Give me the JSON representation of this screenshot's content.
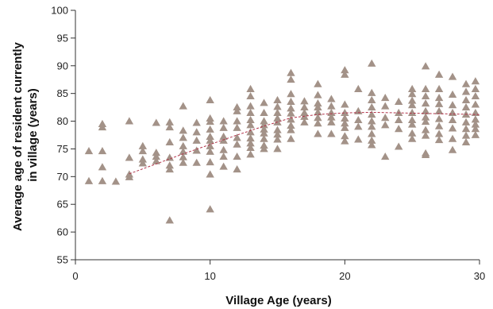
{
  "chart_data": {
    "type": "scatter",
    "xlabel": "Village Age (years)",
    "ylabel_lines": [
      "Average age of resident currently",
      "in village (years)"
    ],
    "xlim": [
      0,
      30
    ],
    "ylim": [
      55,
      100
    ],
    "xticks": [
      0,
      10,
      20,
      30
    ],
    "yticks": [
      55,
      60,
      65,
      70,
      75,
      80,
      85,
      90,
      95,
      100
    ],
    "grid": false,
    "marker_shape": "triangle",
    "marker_color": "#a39288",
    "trend_color": "#b2344a",
    "trend_style": "dashed",
    "trend_line": [
      [
        4,
        70.5
      ],
      [
        6,
        72.3
      ],
      [
        8,
        74.1
      ],
      [
        10,
        75.8
      ],
      [
        12,
        77.5
      ],
      [
        14,
        79.1
      ],
      [
        16,
        80.6
      ],
      [
        18,
        81.2
      ],
      [
        20,
        81.5
      ],
      [
        22,
        81.6
      ],
      [
        24,
        81.5
      ],
      [
        26,
        81.4
      ],
      [
        28,
        81.3
      ],
      [
        30,
        81.2
      ]
    ],
    "points": [
      [
        1,
        74.6
      ],
      [
        1,
        69.2
      ],
      [
        2,
        79.5
      ],
      [
        2,
        78.9
      ],
      [
        2,
        74.6
      ],
      [
        2,
        71.7
      ],
      [
        2,
        69.2
      ],
      [
        3,
        69.1
      ],
      [
        4,
        80.0
      ],
      [
        4,
        73.4
      ],
      [
        4,
        70.4
      ],
      [
        4,
        69.9
      ],
      [
        5,
        75.5
      ],
      [
        5,
        74.6
      ],
      [
        5,
        73.1
      ],
      [
        5,
        72.4
      ],
      [
        6,
        79.7
      ],
      [
        6,
        74.3
      ],
      [
        6,
        73.6
      ],
      [
        6,
        72.8
      ],
      [
        7,
        79.8
      ],
      [
        7,
        78.9
      ],
      [
        7,
        76.2
      ],
      [
        7,
        73.4
      ],
      [
        7,
        72.0
      ],
      [
        7,
        71.3
      ],
      [
        7,
        62.1
      ],
      [
        8,
        82.7
      ],
      [
        8,
        78.3
      ],
      [
        8,
        77.0
      ],
      [
        8,
        75.5
      ],
      [
        8,
        74.5
      ],
      [
        8,
        73.5
      ],
      [
        8,
        72.5
      ],
      [
        9,
        79.7
      ],
      [
        9,
        78.0
      ],
      [
        9,
        76.5
      ],
      [
        9,
        74.7
      ],
      [
        9,
        72.5
      ],
      [
        10,
        83.8
      ],
      [
        10,
        80.5
      ],
      [
        10,
        79.9
      ],
      [
        10,
        78.5
      ],
      [
        10,
        77.2
      ],
      [
        10,
        76.5
      ],
      [
        10,
        75.5
      ],
      [
        10,
        74.5
      ],
      [
        10,
        72.6
      ],
      [
        10,
        70.4
      ],
      [
        10,
        64.1
      ],
      [
        11,
        80.0
      ],
      [
        11,
        78.8
      ],
      [
        11,
        77.2
      ],
      [
        11,
        76.5
      ],
      [
        11,
        74.8
      ],
      [
        11,
        73.6
      ],
      [
        11,
        71.8
      ],
      [
        12,
        82.5
      ],
      [
        12,
        81.8
      ],
      [
        12,
        80.0
      ],
      [
        12,
        78.8
      ],
      [
        12,
        77.0
      ],
      [
        12,
        75.8
      ],
      [
        12,
        73.6
      ],
      [
        12,
        71.3
      ],
      [
        13,
        85.8
      ],
      [
        13,
        84.5
      ],
      [
        13,
        82.7
      ],
      [
        13,
        81.5
      ],
      [
        13,
        80.2
      ],
      [
        13,
        79.3
      ],
      [
        13,
        78.0
      ],
      [
        13,
        76.9
      ],
      [
        13,
        76.0
      ],
      [
        13,
        75.2
      ],
      [
        13,
        74.0
      ],
      [
        14,
        83.3
      ],
      [
        14,
        81.5
      ],
      [
        14,
        80.0
      ],
      [
        14,
        79.3
      ],
      [
        14,
        78.5
      ],
      [
        14,
        77.8
      ],
      [
        14,
        76.8
      ],
      [
        14,
        75.6
      ],
      [
        14,
        75.0
      ],
      [
        15,
        83.8
      ],
      [
        15,
        82.6
      ],
      [
        15,
        81.5
      ],
      [
        15,
        80.5
      ],
      [
        15,
        79.8
      ],
      [
        15,
        78.4
      ],
      [
        15,
        77.6
      ],
      [
        15,
        76.7
      ],
      [
        15,
        75.0
      ],
      [
        16,
        88.7
      ],
      [
        16,
        87.5
      ],
      [
        16,
        84.9
      ],
      [
        16,
        83.5
      ],
      [
        16,
        82.3
      ],
      [
        16,
        81.4
      ],
      [
        16,
        80.3
      ],
      [
        16,
        79.2
      ],
      [
        16,
        78.4
      ],
      [
        16,
        76.8
      ],
      [
        17,
        83.6
      ],
      [
        17,
        82.5
      ],
      [
        17,
        81.5
      ],
      [
        17,
        80.8
      ],
      [
        17,
        79.8
      ],
      [
        18,
        86.7
      ],
      [
        18,
        84.7
      ],
      [
        18,
        83.2
      ],
      [
        18,
        82.5
      ],
      [
        18,
        81.6
      ],
      [
        18,
        80.6
      ],
      [
        18,
        79.6
      ],
      [
        18,
        77.7
      ],
      [
        19,
        84.0
      ],
      [
        19,
        82.7
      ],
      [
        19,
        81.5
      ],
      [
        19,
        80.7
      ],
      [
        19,
        79.8
      ],
      [
        19,
        77.7
      ],
      [
        20,
        89.2
      ],
      [
        20,
        88.4
      ],
      [
        20,
        83.0
      ],
      [
        20,
        81.5
      ],
      [
        20,
        80.5
      ],
      [
        20,
        79.6
      ],
      [
        20,
        78.8
      ],
      [
        20,
        77.3
      ],
      [
        20,
        76.4
      ],
      [
        21,
        85.8
      ],
      [
        21,
        81.8
      ],
      [
        21,
        80.2
      ],
      [
        21,
        79.0
      ],
      [
        21,
        76.7
      ],
      [
        22,
        90.4
      ],
      [
        22,
        85.1
      ],
      [
        22,
        83.8
      ],
      [
        22,
        82.5
      ],
      [
        22,
        81.2
      ],
      [
        22,
        80.0
      ],
      [
        22,
        79.0
      ],
      [
        22,
        77.7
      ],
      [
        22,
        76.5
      ],
      [
        22,
        75.7
      ],
      [
        23,
        84.2
      ],
      [
        23,
        82.7
      ],
      [
        23,
        80.6
      ],
      [
        23,
        79.3
      ],
      [
        23,
        73.6
      ],
      [
        24,
        83.5
      ],
      [
        24,
        81.5
      ],
      [
        24,
        80.2
      ],
      [
        24,
        78.6
      ],
      [
        24,
        75.4
      ],
      [
        25,
        85.8
      ],
      [
        25,
        84.9
      ],
      [
        25,
        83.7
      ],
      [
        25,
        82.9
      ],
      [
        25,
        81.5
      ],
      [
        25,
        80.2
      ],
      [
        25,
        79.4
      ],
      [
        25,
        77.8
      ],
      [
        25,
        76.8
      ],
      [
        26,
        89.9
      ],
      [
        26,
        85.8
      ],
      [
        26,
        84.5
      ],
      [
        26,
        83.2
      ],
      [
        26,
        81.8
      ],
      [
        26,
        80.7
      ],
      [
        26,
        79.9
      ],
      [
        26,
        78.4
      ],
      [
        26,
        77.4
      ],
      [
        26,
        74.2
      ],
      [
        26,
        73.9
      ],
      [
        27,
        88.4
      ],
      [
        27,
        85.8
      ],
      [
        27,
        84.2
      ],
      [
        27,
        83.1
      ],
      [
        27,
        81.8
      ],
      [
        27,
        80.4
      ],
      [
        27,
        79.1
      ],
      [
        27,
        77.7
      ],
      [
        27,
        76.6
      ],
      [
        28,
        88.0
      ],
      [
        28,
        84.8
      ],
      [
        28,
        82.9
      ],
      [
        28,
        81.5
      ],
      [
        28,
        80.2
      ],
      [
        28,
        78.7
      ],
      [
        28,
        76.8
      ],
      [
        28,
        74.8
      ],
      [
        29,
        86.7
      ],
      [
        29,
        85.3
      ],
      [
        29,
        83.8
      ],
      [
        29,
        82.5
      ],
      [
        29,
        81.2
      ],
      [
        29,
        79.8
      ],
      [
        29,
        78.6
      ],
      [
        29,
        77.4
      ],
      [
        29,
        76.2
      ],
      [
        29.7,
        87.2
      ],
      [
        29.7,
        85.8
      ],
      [
        29.7,
        84.5
      ],
      [
        29.7,
        83.0
      ],
      [
        29.7,
        81.5
      ],
      [
        29.7,
        80.3
      ],
      [
        29.7,
        79.4
      ],
      [
        29.7,
        78.6
      ],
      [
        29.7,
        77.5
      ]
    ]
  }
}
